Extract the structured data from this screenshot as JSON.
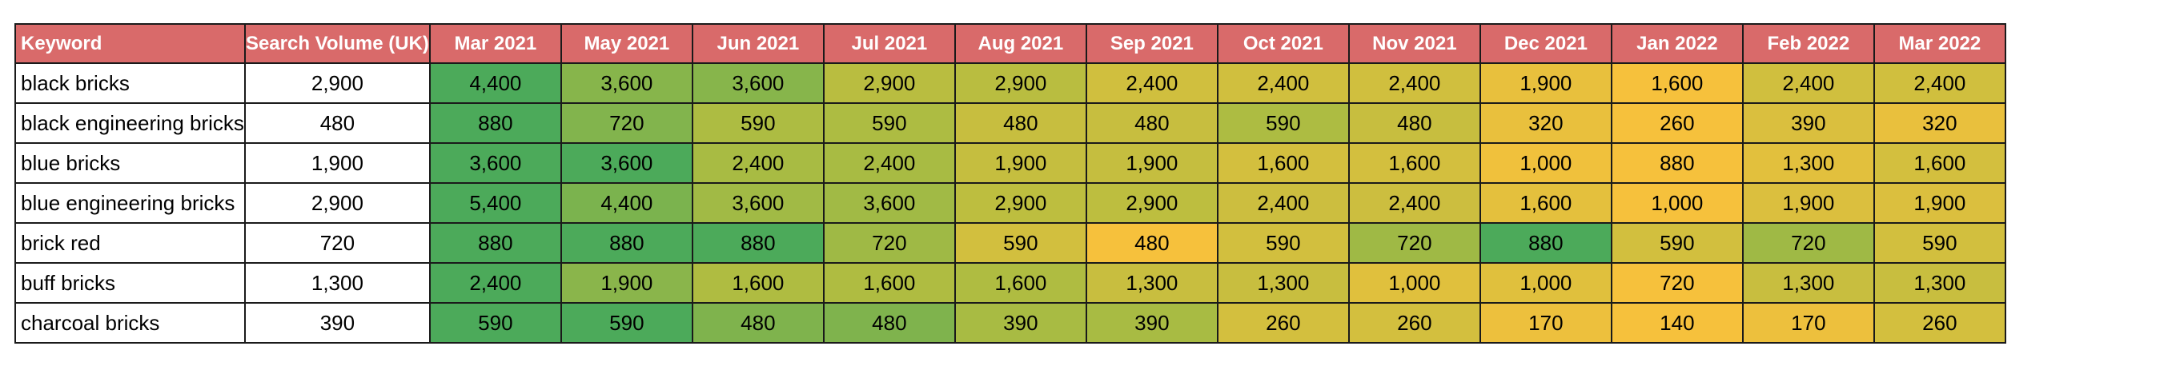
{
  "columns": [
    "Keyword",
    "Search Volume (UK)",
    "Mar 2021",
    "May 2021",
    "Jun 2021",
    "Jul 2021",
    "Aug 2021",
    "Sep 2021",
    "Oct 2021",
    "Nov 2021",
    "Dec 2021",
    "Jan 2022",
    "Feb 2022",
    "Mar 2022"
  ],
  "colors": {
    "header_bg": "#d96a6a",
    "header_text": "#ffffff",
    "scale_low": "#f6c13c",
    "scale_mid": "#b4bd40",
    "scale_high": "#4caa5a"
  },
  "rows": [
    {
      "keyword": "black bricks",
      "volume": "2,900",
      "months": [
        "4,400",
        "3,600",
        "3,600",
        "2,900",
        "2,900",
        "2,400",
        "2,400",
        "2,400",
        "1,900",
        "1,600",
        "2,400",
        "2,400"
      ]
    },
    {
      "keyword": "black engineering bricks",
      "volume": "480",
      "months": [
        "880",
        "720",
        "590",
        "590",
        "480",
        "480",
        "590",
        "480",
        "320",
        "260",
        "390",
        "320"
      ]
    },
    {
      "keyword": "blue bricks",
      "volume": "1,900",
      "months": [
        "3,600",
        "3,600",
        "2,400",
        "2,400",
        "1,900",
        "1,900",
        "1,600",
        "1,600",
        "1,000",
        "880",
        "1,300",
        "1,600"
      ]
    },
    {
      "keyword": "blue engineering bricks",
      "volume": "2,900",
      "months": [
        "5,400",
        "4,400",
        "3,600",
        "3,600",
        "2,900",
        "2,900",
        "2,400",
        "2,400",
        "1,600",
        "1,000",
        "1,900",
        "1,900"
      ]
    },
    {
      "keyword": "brick red",
      "volume": "720",
      "months": [
        "880",
        "880",
        "880",
        "720",
        "590",
        "480",
        "590",
        "720",
        "880",
        "590",
        "720",
        "590"
      ]
    },
    {
      "keyword": "buff bricks",
      "volume": "1,300",
      "months": [
        "2,400",
        "1,900",
        "1,600",
        "1,600",
        "1,600",
        "1,300",
        "1,300",
        "1,000",
        "1,000",
        "720",
        "1,300",
        "1,300"
      ]
    },
    {
      "keyword": "charcoal bricks",
      "volume": "390",
      "months": [
        "590",
        "590",
        "480",
        "480",
        "390",
        "390",
        "260",
        "260",
        "170",
        "140",
        "170",
        "260"
      ]
    }
  ]
}
